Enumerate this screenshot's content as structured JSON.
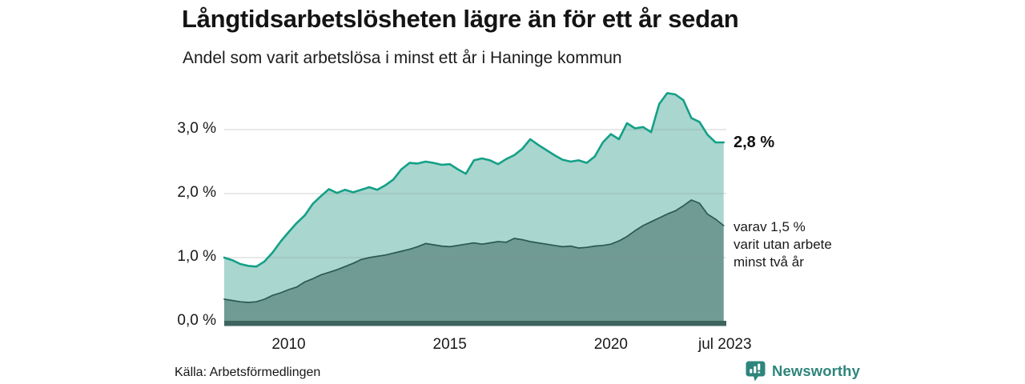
{
  "header": {
    "title": "Långtidsarbetslösheten lägre än för ett år sedan",
    "subtitle": "Andel som varit arbetslösa i minst ett år i Haninge kommun"
  },
  "footer": {
    "source": "Källa: Arbetsförmedlingen",
    "brand": "Newsworthy"
  },
  "colors": {
    "area_1yr_fill": "#a9d6cf",
    "line_1yr": "#14a087",
    "area_2yr_fill": "#6f9b94",
    "line_2yr": "#2b5a50",
    "axis_bar": "#3f6460",
    "gridline": "#8a8f8e",
    "brand_teal": "#2e857c",
    "text": "#191919"
  },
  "chart_data": {
    "type": "area",
    "title": "Långtidsarbetslösheten lägre än för ett år sedan",
    "subtitle": "Andel som varit arbetslösa i minst ett år i Haninge kommun",
    "region": "Haninge kommun",
    "x_unit": "decimal_year",
    "xlim": [
      2008.0,
      2023.583
    ],
    "ylim": [
      0,
      3.75
    ],
    "grid": "horizontal",
    "legend": "none",
    "x": [
      2008.0,
      2008.25,
      2008.5,
      2008.75,
      2009.0,
      2009.25,
      2009.5,
      2009.75,
      2010.0,
      2010.25,
      2010.5,
      2010.75,
      2011.0,
      2011.25,
      2011.5,
      2011.75,
      2012.0,
      2012.25,
      2012.5,
      2012.75,
      2013.0,
      2013.25,
      2013.5,
      2013.75,
      2014.0,
      2014.25,
      2014.5,
      2014.75,
      2015.0,
      2015.25,
      2015.5,
      2015.75,
      2016.0,
      2016.25,
      2016.5,
      2016.75,
      2017.0,
      2017.25,
      2017.5,
      2017.75,
      2018.0,
      2018.25,
      2018.5,
      2018.75,
      2019.0,
      2019.25,
      2019.5,
      2019.75,
      2020.0,
      2020.25,
      2020.5,
      2020.75,
      2021.0,
      2021.25,
      2021.5,
      2021.75,
      2022.0,
      2022.25,
      2022.5,
      2022.75,
      2023.0,
      2023.25,
      2023.5
    ],
    "series": [
      {
        "name": "Andel arbetslösa minst ett år",
        "last_value_label": "2,8 %",
        "values": [
          1.0,
          0.96,
          0.9,
          0.87,
          0.86,
          0.94,
          1.08,
          1.25,
          1.4,
          1.54,
          1.66,
          1.84,
          1.96,
          2.07,
          2.01,
          2.06,
          2.02,
          2.06,
          2.1,
          2.06,
          2.13,
          2.22,
          2.38,
          2.48,
          2.47,
          2.5,
          2.48,
          2.45,
          2.46,
          2.38,
          2.31,
          2.52,
          2.55,
          2.52,
          2.46,
          2.54,
          2.6,
          2.7,
          2.85,
          2.76,
          2.68,
          2.6,
          2.53,
          2.5,
          2.52,
          2.48,
          2.58,
          2.8,
          2.93,
          2.85,
          3.1,
          3.02,
          3.04,
          2.96,
          3.4,
          3.57,
          3.55,
          3.46,
          3.18,
          3.12,
          2.92,
          2.8,
          2.8
        ]
      },
      {
        "name": "varav arbetslösa minst två år",
        "last_value_label": "1,5 %",
        "values": [
          0.35,
          0.33,
          0.31,
          0.3,
          0.31,
          0.35,
          0.41,
          0.45,
          0.5,
          0.54,
          0.62,
          0.67,
          0.73,
          0.77,
          0.81,
          0.86,
          0.91,
          0.97,
          1.0,
          1.02,
          1.04,
          1.07,
          1.1,
          1.13,
          1.17,
          1.22,
          1.2,
          1.18,
          1.17,
          1.19,
          1.21,
          1.23,
          1.21,
          1.23,
          1.25,
          1.24,
          1.3,
          1.28,
          1.25,
          1.23,
          1.21,
          1.19,
          1.17,
          1.18,
          1.15,
          1.16,
          1.18,
          1.19,
          1.21,
          1.26,
          1.33,
          1.42,
          1.5,
          1.56,
          1.62,
          1.68,
          1.73,
          1.81,
          1.9,
          1.85,
          1.68,
          1.6,
          1.5
        ]
      }
    ],
    "y_ticks": [
      {
        "value": 0,
        "label": "0,0 %"
      },
      {
        "value": 1,
        "label": "1,0 %"
      },
      {
        "value": 2,
        "label": "2,0 %"
      },
      {
        "value": 3,
        "label": "3,0 %"
      }
    ],
    "x_ticks": [
      {
        "value": 2010,
        "label": "2010"
      },
      {
        "value": 2015,
        "label": "2015"
      },
      {
        "value": 2020,
        "label": "2020"
      },
      {
        "value": 2023.54,
        "label": "jul 2023"
      }
    ],
    "end_labels": {
      "primary": "2,8 %",
      "secondary_lines": [
        "varav 1,5 %",
        "varit utan arbete",
        "minst två år"
      ]
    }
  }
}
